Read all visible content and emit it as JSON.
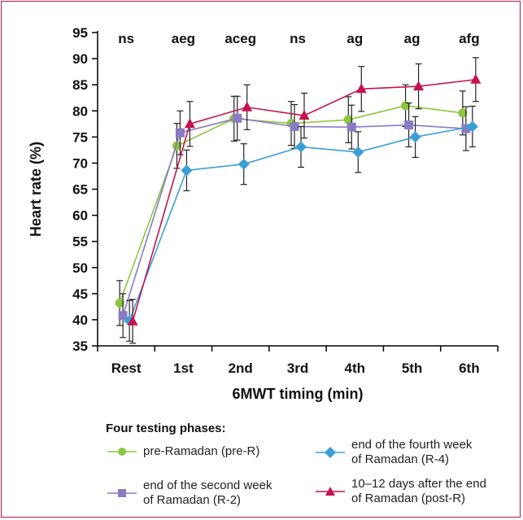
{
  "chart_data": {
    "type": "line",
    "title": "",
    "xlabel": "6MWT timing (min)",
    "ylabel": "Heart rate (%)",
    "ylim": [
      35,
      95
    ],
    "yticks": [
      35,
      40,
      45,
      50,
      55,
      60,
      65,
      70,
      75,
      80,
      85,
      90,
      95
    ],
    "categories": [
      "Rest",
      "1st",
      "2nd",
      "3rd",
      "4th",
      "5th",
      "6th"
    ],
    "annotations": [
      "ns",
      "aeg",
      "aceg",
      "ns",
      "ag",
      "ag",
      "afg"
    ],
    "grid": false,
    "legend_title": "Four testing phases:",
    "legend_position": "bottom",
    "series": [
      {
        "name": "pre-Ramadan (pre-R)",
        "color": "#8dc63f",
        "marker": "circle",
        "values": [
          43.2,
          73.3,
          78.5,
          77.6,
          78.3,
          81.0,
          79.6
        ],
        "errors": [
          4.3,
          4.3,
          4.3,
          4.2,
          4.4,
          4.0,
          4.2
        ]
      },
      {
        "name": "end of the second week\nof Ramadan (R-2)",
        "color": "#8a7bc4",
        "marker": "square",
        "values": [
          40.8,
          75.8,
          78.6,
          77.0,
          76.9,
          77.3,
          76.6
        ],
        "errors": [
          4.2,
          4.2,
          4.2,
          4.2,
          4.2,
          4.2,
          4.2
        ]
      },
      {
        "name": "end of the fourth week\nof Ramadan (R-4)",
        "color": "#3a9fd6",
        "marker": "diamond",
        "values": [
          39.8,
          68.6,
          69.8,
          73.1,
          72.1,
          75.0,
          77.0
        ],
        "errors": [
          3.9,
          3.9,
          3.9,
          3.9,
          3.9,
          3.9,
          3.9
        ]
      },
      {
        "name": "10–12 days after the end\nof Ramadan (post-R)",
        "color": "#c3144d",
        "marker": "triangle",
        "values": [
          39.7,
          77.5,
          80.7,
          79.1,
          84.2,
          84.7,
          86.0
        ],
        "errors": [
          4.2,
          4.3,
          4.3,
          4.3,
          4.3,
          4.3,
          4.2
        ]
      }
    ]
  }
}
